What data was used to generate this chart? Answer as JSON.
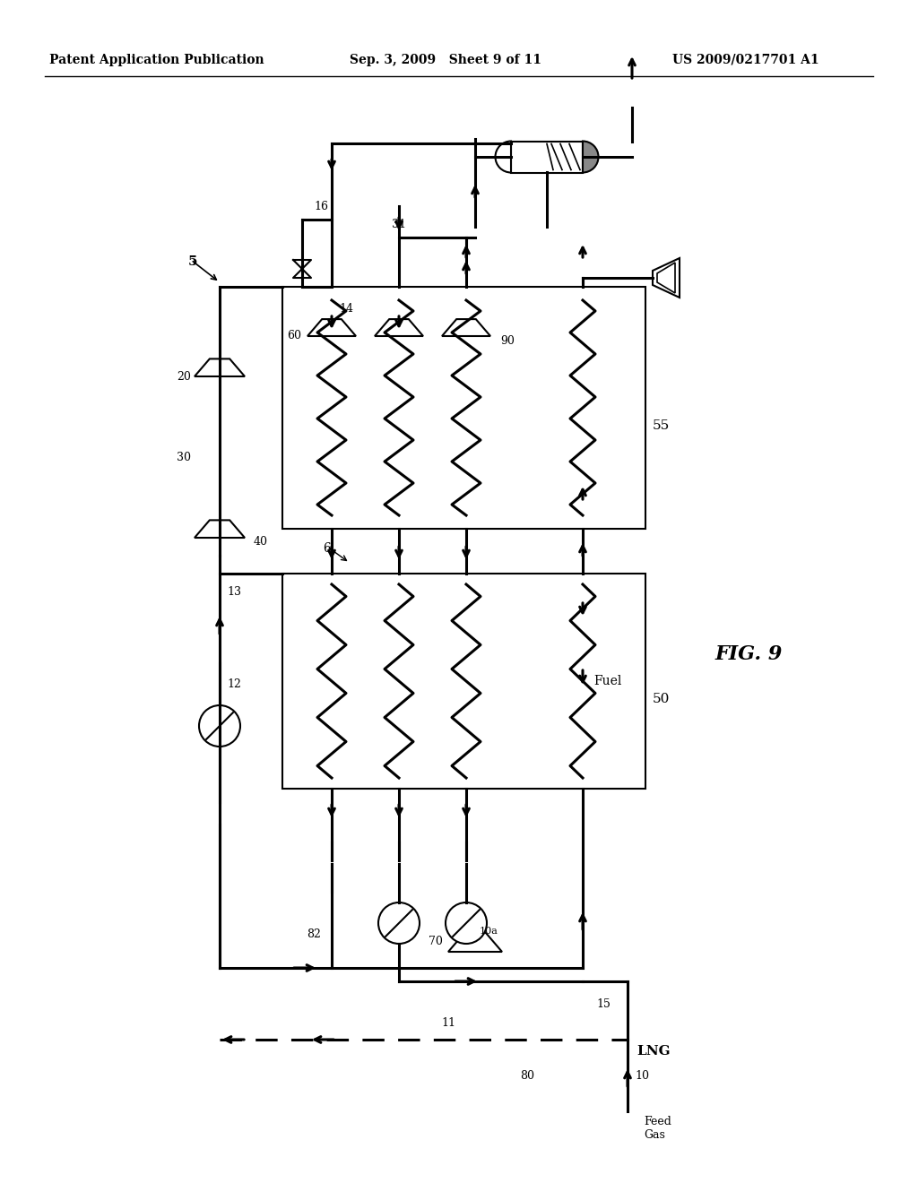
{
  "bg_color": "#ffffff",
  "line_color": "#000000",
  "header_left": "Patent Application Publication",
  "header_mid": "Sep. 3, 2009   Sheet 9 of 11",
  "header_right": "US 2009/0217701 A1",
  "fig_label": "FIG. 9"
}
